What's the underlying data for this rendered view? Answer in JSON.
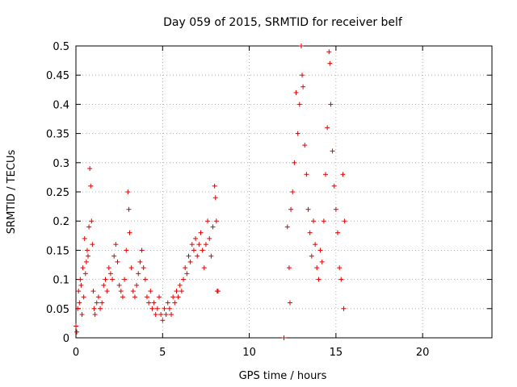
{
  "chart_data": {
    "type": "scatter",
    "title": "Day 059 of 2015, SRMTID for receiver belf",
    "xlabel": "GPS time / hours",
    "ylabel": "SRMTID / TECUs",
    "xlim": [
      0,
      24
    ],
    "ylim": [
      0,
      0.5
    ],
    "x_ticks": [
      0,
      5,
      10,
      15,
      20
    ],
    "x_tick_labels": [
      "0",
      "5",
      "10",
      "15",
      "20"
    ],
    "y_ticks": [
      0,
      0.05,
      0.1,
      0.15,
      0.2,
      0.25,
      0.3,
      0.35,
      0.4,
      0.45,
      0.5
    ],
    "y_tick_labels": [
      "0",
      "0.05",
      "0.1",
      "0.15",
      "0.2",
      "0.25",
      "0.3",
      "0.35",
      "0.4",
      "0.45",
      "0.5"
    ],
    "grid": true,
    "marker": "+",
    "color": "#e00000",
    "series": [
      {
        "name": "SRMTID",
        "points": [
          [
            0.0,
            0.02
          ],
          [
            0.05,
            0.01
          ],
          [
            0.1,
            0.05
          ],
          [
            0.15,
            0.08
          ],
          [
            0.2,
            0.06
          ],
          [
            0.25,
            0.1
          ],
          [
            0.3,
            0.09
          ],
          [
            0.35,
            0.04
          ],
          [
            0.4,
            0.12
          ],
          [
            0.45,
            0.07
          ],
          [
            0.5,
            0.17
          ],
          [
            0.55,
            0.11
          ],
          [
            0.6,
            0.13
          ],
          [
            0.65,
            0.15
          ],
          [
            0.7,
            0.14
          ],
          [
            0.75,
            0.19
          ],
          [
            0.8,
            0.29
          ],
          [
            0.85,
            0.26
          ],
          [
            0.9,
            0.2
          ],
          [
            0.95,
            0.16
          ],
          [
            1.0,
            0.08
          ],
          [
            1.05,
            0.05
          ],
          [
            1.1,
            0.04
          ],
          [
            1.2,
            0.06
          ],
          [
            1.3,
            0.07
          ],
          [
            1.4,
            0.05
          ],
          [
            1.5,
            0.06
          ],
          [
            1.6,
            0.09
          ],
          [
            1.7,
            0.1
          ],
          [
            1.8,
            0.08
          ],
          [
            1.9,
            0.12
          ],
          [
            2.0,
            0.11
          ],
          [
            2.1,
            0.1
          ],
          [
            2.2,
            0.14
          ],
          [
            2.3,
            0.16
          ],
          [
            2.4,
            0.13
          ],
          [
            2.5,
            0.09
          ],
          [
            2.6,
            0.08
          ],
          [
            2.7,
            0.07
          ],
          [
            2.8,
            0.1
          ],
          [
            2.9,
            0.15
          ],
          [
            3.0,
            0.25
          ],
          [
            3.05,
            0.22
          ],
          [
            3.1,
            0.18
          ],
          [
            3.2,
            0.12
          ],
          [
            3.3,
            0.08
          ],
          [
            3.4,
            0.07
          ],
          [
            3.5,
            0.09
          ],
          [
            3.6,
            0.11
          ],
          [
            3.7,
            0.13
          ],
          [
            3.8,
            0.15
          ],
          [
            3.9,
            0.12
          ],
          [
            4.0,
            0.1
          ],
          [
            4.1,
            0.07
          ],
          [
            4.2,
            0.06
          ],
          [
            4.3,
            0.08
          ],
          [
            4.4,
            0.05
          ],
          [
            4.5,
            0.06
          ],
          [
            4.6,
            0.04
          ],
          [
            4.7,
            0.05
          ],
          [
            4.8,
            0.07
          ],
          [
            4.9,
            0.04
          ],
          [
            5.0,
            0.03
          ],
          [
            5.1,
            0.05
          ],
          [
            5.2,
            0.04
          ],
          [
            5.3,
            0.06
          ],
          [
            5.4,
            0.05
          ],
          [
            5.5,
            0.04
          ],
          [
            5.6,
            0.07
          ],
          [
            5.7,
            0.06
          ],
          [
            5.8,
            0.08
          ],
          [
            5.9,
            0.07
          ],
          [
            6.0,
            0.09
          ],
          [
            6.1,
            0.08
          ],
          [
            6.2,
            0.1
          ],
          [
            6.3,
            0.12
          ],
          [
            6.4,
            0.11
          ],
          [
            6.5,
            0.14
          ],
          [
            6.6,
            0.13
          ],
          [
            6.7,
            0.16
          ],
          [
            6.8,
            0.15
          ],
          [
            6.9,
            0.17
          ],
          [
            7.0,
            0.14
          ],
          [
            7.1,
            0.16
          ],
          [
            7.2,
            0.18
          ],
          [
            7.3,
            0.15
          ],
          [
            7.4,
            0.12
          ],
          [
            7.5,
            0.16
          ],
          [
            7.6,
            0.2
          ],
          [
            7.7,
            0.17
          ],
          [
            7.8,
            0.14
          ],
          [
            7.9,
            0.19
          ],
          [
            8.0,
            0.26
          ],
          [
            8.05,
            0.24
          ],
          [
            8.1,
            0.2
          ],
          [
            8.15,
            0.08
          ],
          [
            8.2,
            0.08
          ],
          [
            12.0,
            0.0
          ],
          [
            12.2,
            0.19
          ],
          [
            12.3,
            0.12
          ],
          [
            12.35,
            0.06
          ],
          [
            12.4,
            0.22
          ],
          [
            12.5,
            0.25
          ],
          [
            12.6,
            0.3
          ],
          [
            12.7,
            0.42
          ],
          [
            12.8,
            0.35
          ],
          [
            12.9,
            0.4
          ],
          [
            13.0,
            0.5
          ],
          [
            13.05,
            0.45
          ],
          [
            13.1,
            0.43
          ],
          [
            13.2,
            0.33
          ],
          [
            13.3,
            0.28
          ],
          [
            13.4,
            0.22
          ],
          [
            13.5,
            0.18
          ],
          [
            13.6,
            0.14
          ],
          [
            13.7,
            0.2
          ],
          [
            13.8,
            0.16
          ],
          [
            13.9,
            0.12
          ],
          [
            14.0,
            0.1
          ],
          [
            14.1,
            0.15
          ],
          [
            14.2,
            0.13
          ],
          [
            14.3,
            0.2
          ],
          [
            14.4,
            0.28
          ],
          [
            14.5,
            0.36
          ],
          [
            14.6,
            0.49
          ],
          [
            14.65,
            0.47
          ],
          [
            14.7,
            0.4
          ],
          [
            14.8,
            0.32
          ],
          [
            14.9,
            0.26
          ],
          [
            15.0,
            0.22
          ],
          [
            15.1,
            0.18
          ],
          [
            15.2,
            0.12
          ],
          [
            15.3,
            0.1
          ],
          [
            15.4,
            0.28
          ],
          [
            15.45,
            0.05
          ],
          [
            15.5,
            0.2
          ]
        ]
      }
    ]
  }
}
